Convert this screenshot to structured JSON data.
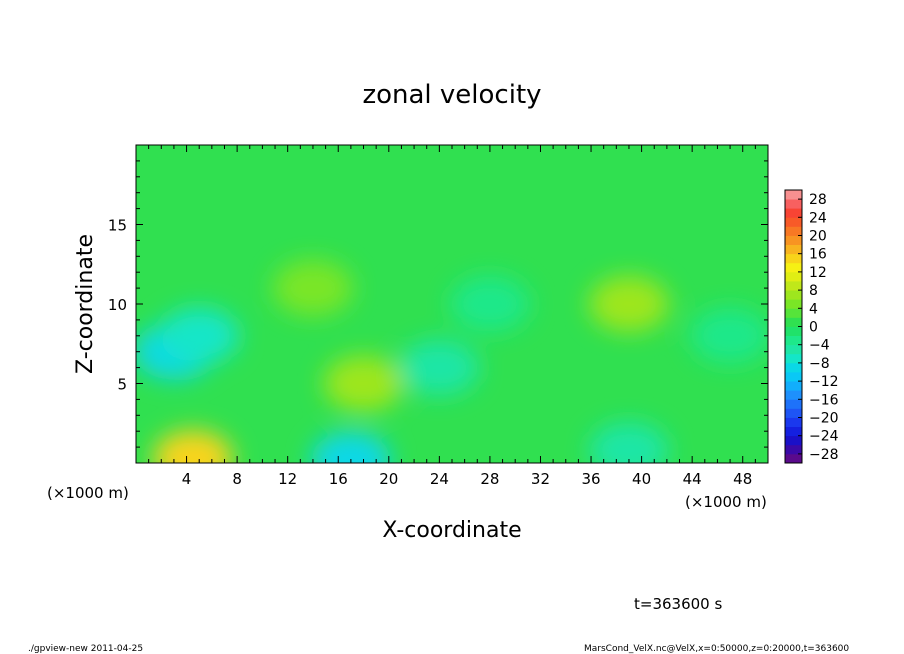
{
  "chart_data": {
    "type": "heatmap",
    "title": "zonal velocity",
    "xlabel": "X-coordinate",
    "ylabel": "Z-coordinate",
    "x_unit_left": "(×1000 m)",
    "x_unit_right": "(×1000 m)",
    "xlim": [
      0,
      50
    ],
    "ylim": [
      0,
      20
    ],
    "x_ticks": [
      4,
      8,
      12,
      16,
      20,
      24,
      28,
      32,
      36,
      40,
      44,
      48
    ],
    "y_ticks": [
      5,
      10,
      15
    ],
    "colorbar": {
      "levels": [
        -30,
        -28,
        -26,
        -24,
        -22,
        -20,
        -18,
        -16,
        -14,
        -12,
        -10,
        -8,
        -6,
        -4,
        -2,
        0,
        2,
        4,
        6,
        8,
        10,
        12,
        14,
        16,
        18,
        20,
        22,
        24,
        26,
        28,
        30
      ],
      "colors": [
        "#5a0a8c",
        "#3a0aa8",
        "#1a10c8",
        "#1420e0",
        "#1a38ee",
        "#1e55f5",
        "#1e72fa",
        "#1e90fc",
        "#12aefc",
        "#0ac8f5",
        "#0ad8e6",
        "#14e6c8",
        "#1ee6a6",
        "#1ee88a",
        "#20e26a",
        "#30e050",
        "#56e43a",
        "#7ae626",
        "#9ee61e",
        "#c0e81a",
        "#e0ee14",
        "#f6f014",
        "#f8d41a",
        "#f8b420",
        "#f89422",
        "#f87824",
        "#f85a28",
        "#f84434",
        "#f86060",
        "#f89090"
      ],
      "tick_labels": [
        "28",
        "24",
        "20",
        "16",
        "12",
        "8",
        "4",
        "0",
        "−4",
        "−8",
        "−12",
        "−16",
        "−20",
        "−24",
        "−28"
      ]
    },
    "field_features": [
      {
        "x": 4.5,
        "z": 0.3,
        "value": 14
      },
      {
        "x": 17,
        "z": 0.2,
        "value": -10
      },
      {
        "x": 39,
        "z": 0.8,
        "value": -5
      },
      {
        "x": 3,
        "z": 7,
        "value": -10
      },
      {
        "x": 5,
        "z": 8,
        "value": -7
      },
      {
        "x": 18,
        "z": 5,
        "value": 7
      },
      {
        "x": 14,
        "z": 11,
        "value": 5
      },
      {
        "x": 39,
        "z": 10,
        "value": 6
      },
      {
        "x": 28,
        "z": 10,
        "value": -4
      },
      {
        "x": 24,
        "z": 6,
        "value": -5
      },
      {
        "x": 47,
        "z": 8,
        "value": -4
      }
    ],
    "background_value": 0
  },
  "annotations": {
    "time": "t=363600 s",
    "footer_left": "./gpview-new   2011-04-25",
    "footer_right": "MarsCond_VelX.nc@VelX,x=0:50000,z=0:20000,t=363600"
  }
}
